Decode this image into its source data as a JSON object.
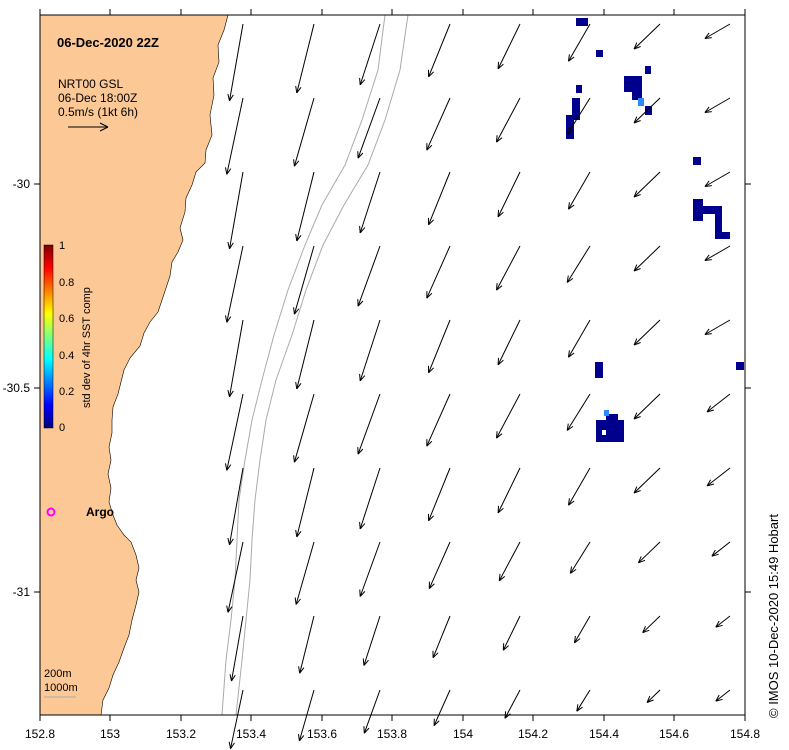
{
  "map": {
    "title": "06-Dec-2020 22Z",
    "product_line1": "NRT00 GSL",
    "product_line2": "06-Dec 18:00Z",
    "scale_label": "0.5m/s (1kt 6h)",
    "credit": "© IMOS 10-Dec-2020 15:49 Hobart",
    "argo_label": "Argo",
    "depth_label_1": "200m",
    "depth_label_2": "1000m",
    "land_color": "#fcc896",
    "ocean_color": "#ffffff"
  },
  "colorbar": {
    "label": "std dev of 4hr SST comp",
    "ticks": [
      "1",
      "0.8",
      "0.6",
      "0.4",
      "0.2",
      "0"
    ],
    "colors": [
      "#00007f",
      "#0000ff",
      "#007fff",
      "#00ffff",
      "#7fff7f",
      "#ffff00",
      "#ff7f00",
      "#ff0000",
      "#7f0000"
    ]
  },
  "axes": {
    "lon_ticks": [
      "152.8",
      "153",
      "153.2",
      "153.4",
      "153.6",
      "153.8",
      "154",
      "154.2",
      "154.4",
      "154.6",
      "154.8"
    ],
    "lat_ticks": [
      "-30",
      "-30.5",
      "-31"
    ]
  }
}
